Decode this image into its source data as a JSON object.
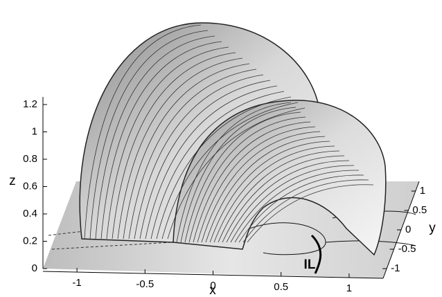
{
  "chart_data": {
    "type": "surface3d",
    "xlabel": "x",
    "ylabel": "y",
    "zlabel": "z",
    "annotation": "IL",
    "xlim": [
      -1.25,
      1.25
    ],
    "xticks": [
      -1,
      -0.5,
      0,
      0.5,
      1
    ],
    "ylim": [
      -1.25,
      1.25
    ],
    "yticks": [
      -1,
      -0.5,
      0,
      0.5,
      1
    ],
    "zlim": [
      0,
      1.2
    ],
    "zticks": [
      0,
      0.2,
      0.4,
      0.6,
      0.8,
      1,
      1.2
    ]
  }
}
